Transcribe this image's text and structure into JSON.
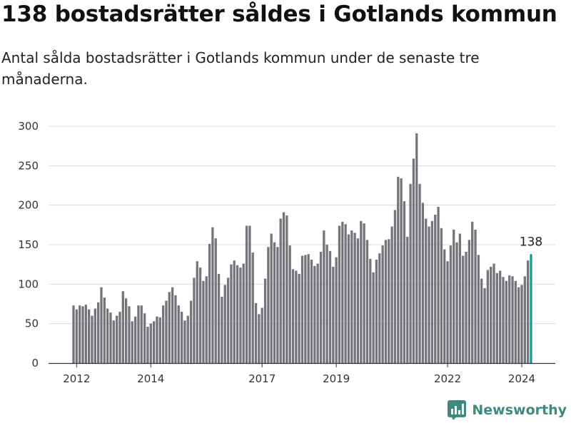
{
  "header": {
    "title": "138 bostadsrätter såldes i Gotlands kommun",
    "subtitle": "Antal sålda bostadsrätter i Gotlands kommun under de senaste tre månaderna."
  },
  "brand": {
    "name": "Newsworthy",
    "color": "#3e8a7f"
  },
  "colors": {
    "bar": "#74747a",
    "highlight": "#139e93",
    "grid": "#d9d9d9",
    "axis": "#333333"
  },
  "chart_data": {
    "type": "bar",
    "title": "138 bostadsrätter såldes i Gotlands kommun",
    "subtitle": "Antal sålda bostadsrätter i Gotlands kommun under de senaste tre månaderna.",
    "xlabel": "",
    "ylabel": "",
    "ylim": [
      0,
      300
    ],
    "yticks": [
      0,
      50,
      100,
      150,
      200,
      250,
      300
    ],
    "xticks": [
      "2012",
      "2014",
      "2017",
      "2019",
      "2022",
      "2024"
    ],
    "grid": true,
    "highlight_label": "138",
    "x_start": "2011-12",
    "x_end": "2024-05",
    "values": [
      73,
      68,
      73,
      72,
      74,
      68,
      60,
      69,
      77,
      96,
      83,
      69,
      64,
      54,
      60,
      65,
      91,
      82,
      72,
      53,
      59,
      73,
      73,
      63,
      46,
      50,
      53,
      59,
      58,
      73,
      79,
      90,
      96,
      86,
      73,
      65,
      54,
      60,
      79,
      108,
      129,
      121,
      104,
      110,
      151,
      172,
      158,
      113,
      84,
      99,
      108,
      125,
      130,
      124,
      121,
      126,
      174,
      174,
      140,
      76,
      62,
      70,
      107,
      147,
      164,
      153,
      147,
      183,
      191,
      187,
      149,
      119,
      117,
      113,
      136,
      137,
      138,
      131,
      123,
      126,
      141,
      168,
      150,
      142,
      122,
      134,
      174,
      179,
      176,
      163,
      168,
      165,
      158,
      180,
      177,
      156,
      132,
      115,
      131,
      139,
      149,
      156,
      157,
      173,
      194,
      236,
      234,
      205,
      160,
      227,
      259,
      291,
      227,
      203,
      183,
      173,
      180,
      188,
      198,
      171,
      144,
      129,
      149,
      169,
      153,
      164,
      136,
      141,
      156,
      179,
      169,
      137,
      107,
      95,
      118,
      122,
      126,
      114,
      117,
      109,
      104,
      111,
      110,
      104,
      96,
      99,
      110,
      130,
      138
    ]
  }
}
